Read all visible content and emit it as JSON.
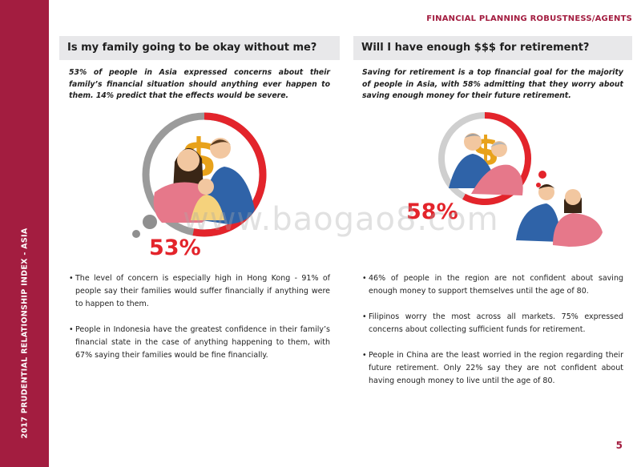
{
  "header": {
    "section": "FINANCIAL PLANNING ROBUSTNESS/AGENTS"
  },
  "sidebar": {
    "label": "2017 PRUDENTIAL RELATIONSHIP INDEX - ASIA"
  },
  "left": {
    "title": "Is my family going to be okay without me?",
    "intro": "53% of people in Asia expressed concerns about their family’s financial situation should anything ever happen to them. 14% predict that the effects would be severe.",
    "percent_label": "53%",
    "percent_value": 53,
    "bullets": [
      "The level of concern is especially high in Hong Kong - 91% of people say their families would suffer financially if anything were to happen to them.",
      "People in Indonesia have the greatest confidence in their family’s financial state in the case of anything happening to them, with 67% saying their families would be fine financially."
    ]
  },
  "right": {
    "title": "Will I have enough $$$ for retirement?",
    "intro": "Saving for retirement is a top financial goal for the majority of people in Asia, with 58% admitting that they worry about saving enough money for their future retirement.",
    "percent_label": "58%",
    "percent_value": 58,
    "bullets": [
      "46% of people in the region are not confident about saving enough money to support themselves until the age of 80.",
      "Filipinos worry the most across all markets. 75% expressed concerns about collecting sufficient funds for retirement.",
      "People in China are the least worried in the region regarding their future retirement. Only 22% say they are not confident about having enough money to live until the age of 80."
    ]
  },
  "watermark": "www.baogao8.com",
  "page_number": "5",
  "colors": {
    "brand": "#a31d40",
    "accent_red": "#e3242b",
    "ring_gray": "#9b9b9b",
    "title_bg": "#e8e8ea",
    "gold": "#e8a21b",
    "shirt_blue": "#2f63a8",
    "shirt_pink": "#e6788a"
  }
}
